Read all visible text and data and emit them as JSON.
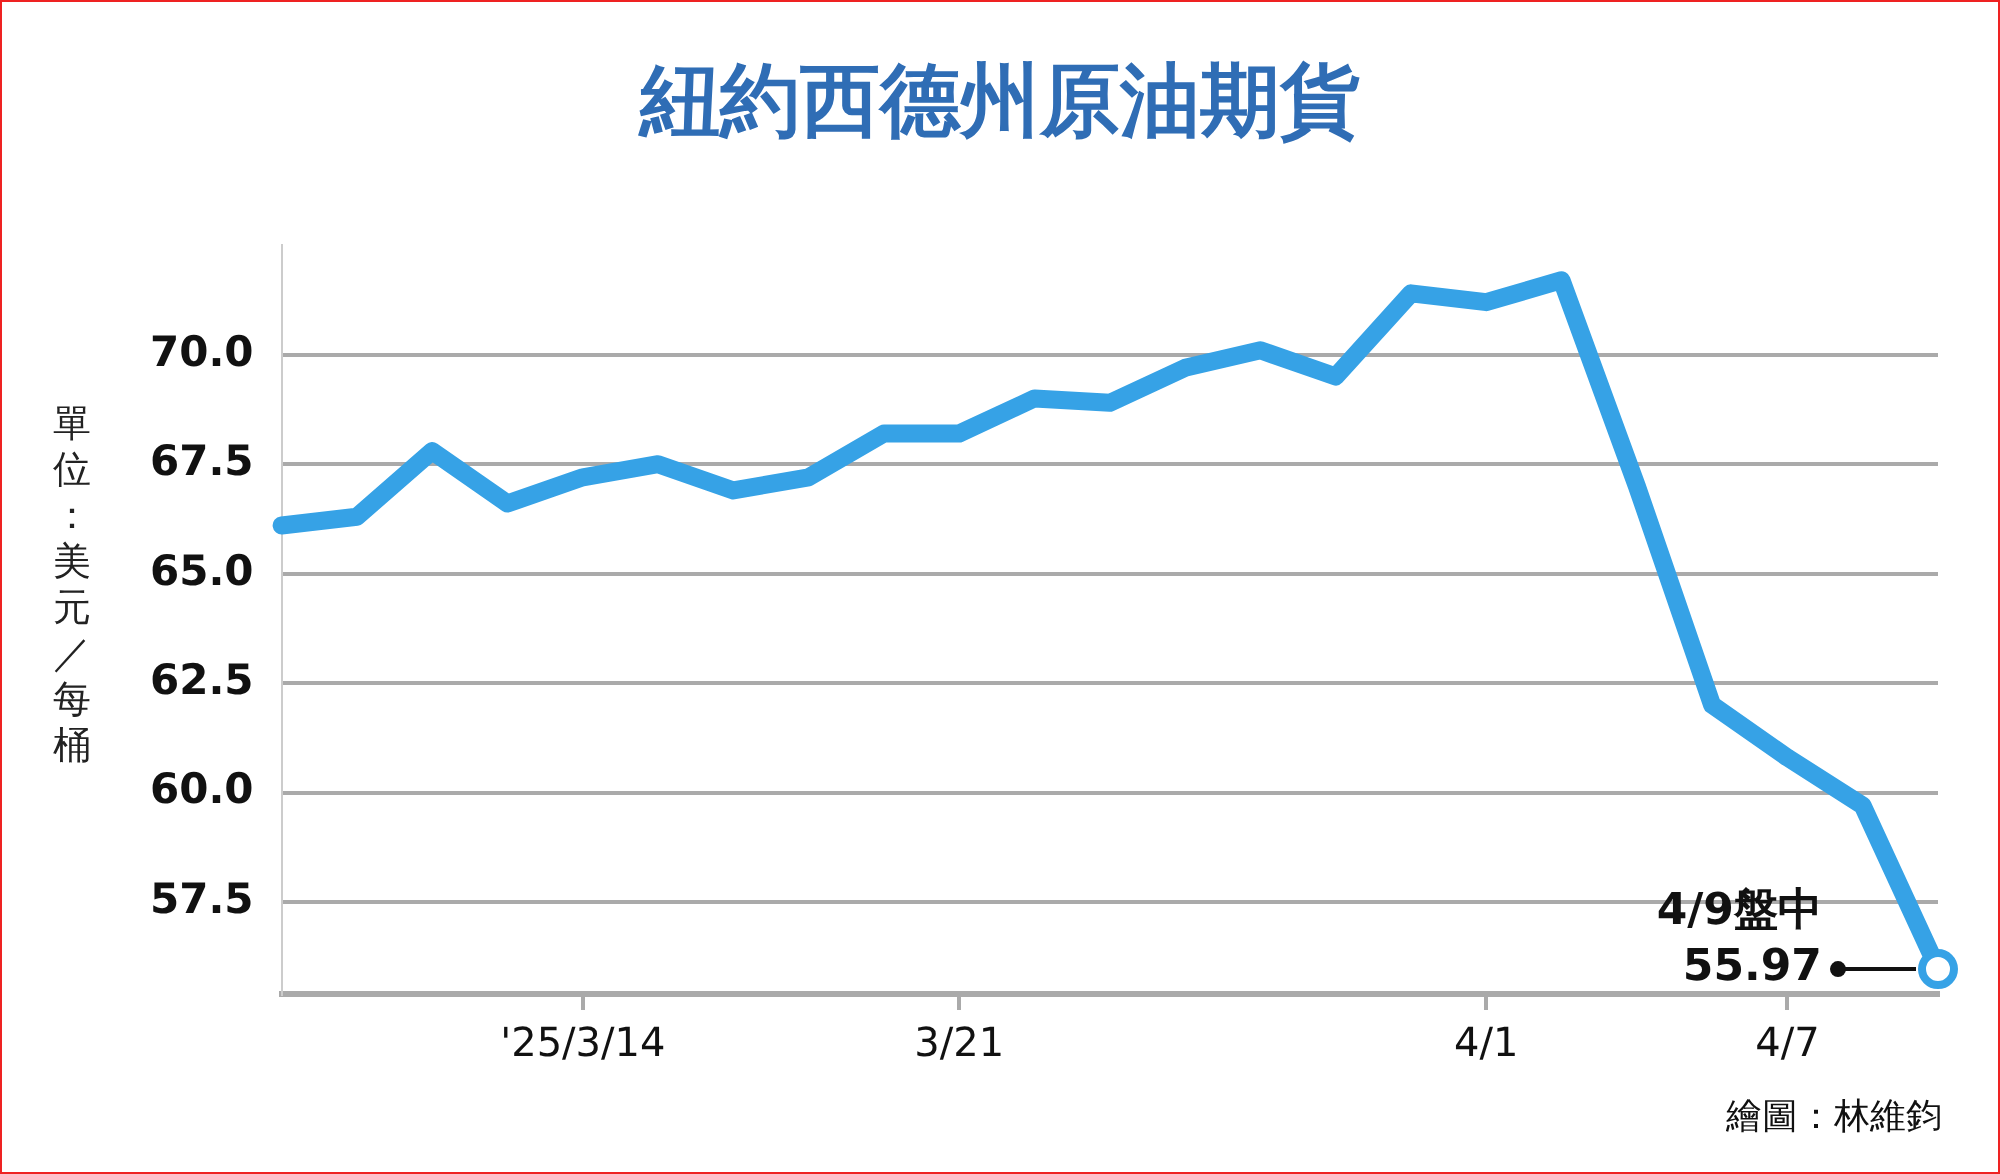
{
  "chart_data": {
    "type": "line",
    "title": "紐約西德州原油期貨",
    "ylabel": "單位：美元／每桶",
    "categories": [
      null,
      null,
      null,
      null,
      "'25/3/14",
      null,
      null,
      null,
      null,
      "3/21",
      null,
      null,
      null,
      null,
      null,
      null,
      "4/1",
      null,
      null,
      null,
      "4/7",
      null,
      null
    ],
    "series": [
      {
        "color": "#36a2e6",
        "values": [
          66.1,
          66.3,
          67.8,
          66.6,
          67.2,
          67.5,
          66.9,
          67.2,
          68.2,
          68.2,
          69.0,
          68.9,
          69.7,
          70.1,
          69.5,
          71.4,
          71.2,
          71.7,
          67.0,
          62.0,
          60.8,
          59.7,
          55.97
        ]
      }
    ],
    "ylim": [
      55.4,
      72.5
    ],
    "yticks": [
      {
        "value": 57.5,
        "label": "57.5"
      },
      {
        "value": 60,
        "label": "60.0"
      },
      {
        "value": 62.5,
        "label": "62.5"
      },
      {
        "value": 65,
        "label": "65.0"
      },
      {
        "value": 67.5,
        "label": "67.5"
      },
      {
        "value": 70,
        "label": "70.0"
      }
    ],
    "grid": "y",
    "legend": false,
    "annotations": [
      "4/9盤中\n55.97",
      "繪圖：林維鈞"
    ]
  }
}
